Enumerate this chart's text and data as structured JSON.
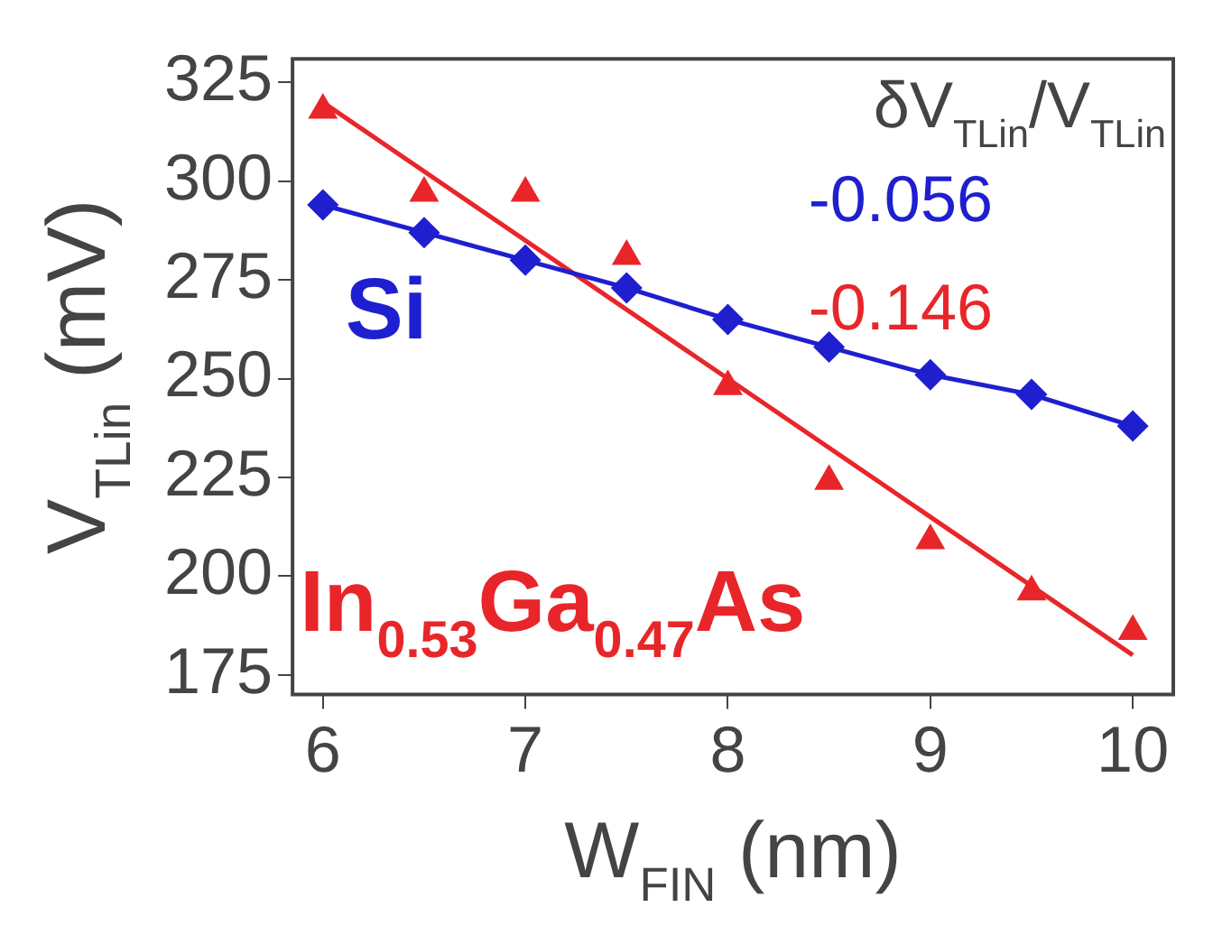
{
  "chart_data": {
    "type": "line",
    "xlabel": "W$_{FIN}$ (nm)",
    "ylabel": "V$_{TLin}$ (mV)",
    "xlim": [
      5.85,
      10.2
    ],
    "xticks": [
      6,
      7,
      8,
      9,
      10
    ],
    "ylim": [
      170,
      331
    ],
    "yticks": [
      175,
      200,
      225,
      250,
      275,
      300,
      325
    ],
    "grid": false,
    "legend": false,
    "annotations": [
      "δV$_{TLin}$/V$_{TLin}$",
      "-0.056",
      "-0.146"
    ],
    "series": [
      {
        "name": "Si",
        "type": "line",
        "marker": "diamond",
        "color": "#1f1fd0",
        "x": [
          6,
          6.5,
          7,
          7.5,
          8,
          8.5,
          9,
          9.5,
          10
        ],
        "values": [
          294,
          287,
          280,
          273,
          265,
          258,
          251,
          246,
          238
        ]
      },
      {
        "name": "In$_{0.53}$Ga$_{0.47}$As",
        "type": "scatter",
        "marker": "triangle",
        "color": "#e8262a",
        "x": [
          6,
          6.5,
          7,
          7.5,
          8,
          8.5,
          9,
          9.5,
          10
        ],
        "values": [
          318,
          297,
          297,
          281,
          248,
          224,
          209,
          196,
          186
        ]
      },
      {
        "marker": "none",
        "color": "#e8262a",
        "x": [
          6,
          10
        ],
        "values": [
          320,
          180
        ]
      }
    ]
  }
}
